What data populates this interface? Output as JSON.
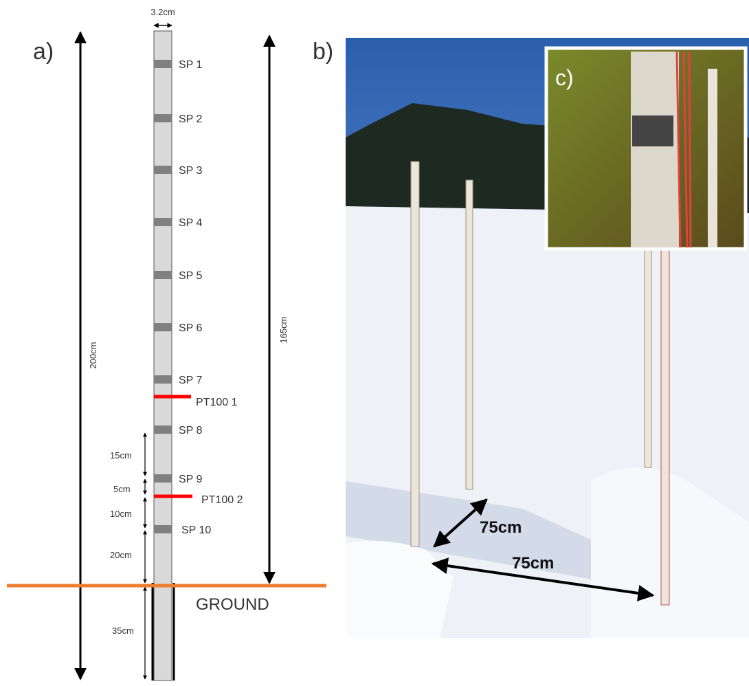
{
  "panel_a": {
    "label": "a)",
    "width_label": "3.2cm",
    "total_length": "200cm",
    "above_ground": "165cm",
    "sensors": [
      "SP 1",
      "SP 2",
      "SP 3",
      "SP 4",
      "SP 5",
      "SP 6",
      "SP 7",
      "SP 8",
      "SP 9",
      "SP 10"
    ],
    "pt100": [
      "PT100 1",
      "PT100 2"
    ],
    "spacings": [
      "15cm",
      "5cm",
      "10cm",
      "20cm",
      "35cm"
    ],
    "ground": "GROUND"
  },
  "panel_b": {
    "label": "b)",
    "distances": [
      "75cm",
      "75cm"
    ]
  },
  "panel_c": {
    "label": "c)"
  }
}
